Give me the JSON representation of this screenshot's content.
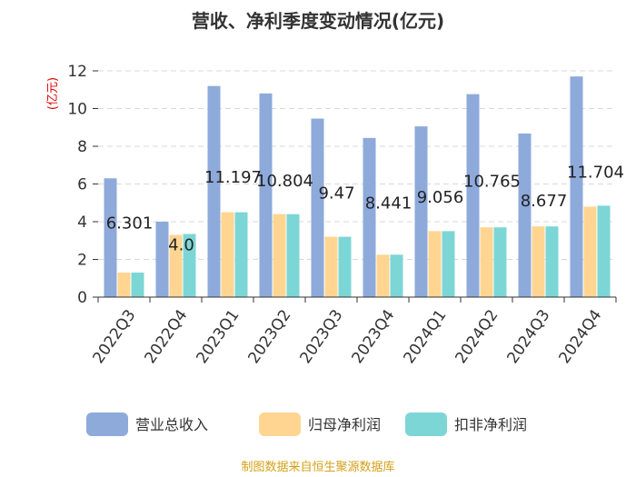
{
  "chart_data": {
    "type": "bar",
    "title": "营收、净利季度变动情况(亿元)",
    "unit_label": "(亿元)",
    "categories": [
      "2022Q3",
      "2022Q4",
      "2023Q1",
      "2023Q2",
      "2023Q3",
      "2023Q4",
      "2024Q1",
      "2024Q2",
      "2024Q3",
      "2024Q4"
    ],
    "series": [
      {
        "name": "营业总收入",
        "color": "#8eaadb",
        "values": [
          6.301,
          4.0,
          11.197,
          10.804,
          9.47,
          8.441,
          9.056,
          10.765,
          8.677,
          11.704
        ]
      },
      {
        "name": "归母净利润",
        "color": "#ffd591",
        "values": [
          1.3,
          3.3,
          4.5,
          4.4,
          3.2,
          2.25,
          3.5,
          3.7,
          3.75,
          4.8
        ]
      },
      {
        "name": "扣非净利润",
        "color": "#7dd6d6",
        "values": [
          1.3,
          3.35,
          4.5,
          4.4,
          3.2,
          2.25,
          3.5,
          3.7,
          3.75,
          4.85
        ]
      }
    ],
    "data_labels": [
      "6.301",
      "4.0",
      "11.197",
      "10.804",
      "9.47",
      "8.441",
      "9.056",
      "10.765",
      "8.677",
      "11.704"
    ],
    "yticks": [
      "0",
      "2",
      "4",
      "6",
      "8",
      "10",
      "12"
    ],
    "ylim": [
      0,
      12
    ],
    "grid": true,
    "legend_position": "bottom"
  },
  "source_text": "制图数据来自恒生聚源数据库"
}
